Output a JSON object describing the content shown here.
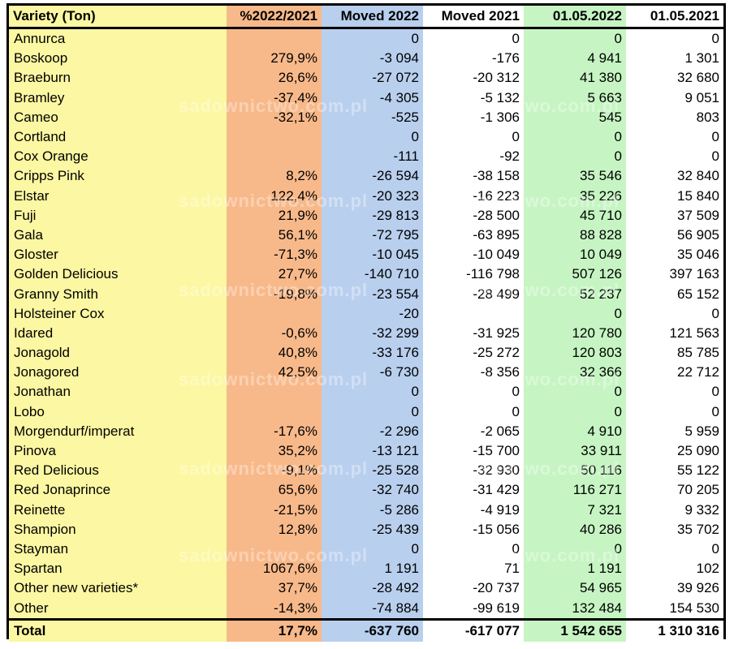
{
  "header": {
    "variety": "Variety (Ton)",
    "pct": "%2022/2021",
    "moved2022": "Moved 2022",
    "moved2021": "Moved 2021",
    "stock2022": "01.05.2022",
    "stock2021": "01.05.2021"
  },
  "rows": [
    {
      "variety": "Annurca",
      "pct": "",
      "moved2022": "0",
      "moved2021": "0",
      "stock2022": "0",
      "stock2021": "0"
    },
    {
      "variety": "Boskoop",
      "pct": "279,9%",
      "moved2022": "-3 094",
      "moved2021": "-176",
      "stock2022": "4 941",
      "stock2021": "1 301"
    },
    {
      "variety": "Braeburn",
      "pct": "26,6%",
      "moved2022": "-27 072",
      "moved2021": "-20 312",
      "stock2022": "41 380",
      "stock2021": "32 680"
    },
    {
      "variety": "Bramley",
      "pct": "-37,4%",
      "moved2022": "-4 305",
      "moved2021": "-5 132",
      "stock2022": "5 663",
      "stock2021": "9 051"
    },
    {
      "variety": "Cameo",
      "pct": "-32,1%",
      "moved2022": "-525",
      "moved2021": "-1 306",
      "stock2022": "545",
      "stock2021": "803"
    },
    {
      "variety": "Cortland",
      "pct": "",
      "moved2022": "0",
      "moved2021": "0",
      "stock2022": "0",
      "stock2021": "0"
    },
    {
      "variety": "Cox Orange",
      "pct": "",
      "moved2022": "-111",
      "moved2021": "-92",
      "stock2022": "0",
      "stock2021": "0"
    },
    {
      "variety": "Cripps Pink",
      "pct": "8,2%",
      "moved2022": "-26 594",
      "moved2021": "-38 158",
      "stock2022": "35 546",
      "stock2021": "32 840"
    },
    {
      "variety": "Elstar",
      "pct": "122,4%",
      "moved2022": "-20 323",
      "moved2021": "-16 223",
      "stock2022": "35 226",
      "stock2021": "15 840"
    },
    {
      "variety": "Fuji",
      "pct": "21,9%",
      "moved2022": "-29 813",
      "moved2021": "-28 500",
      "stock2022": "45 710",
      "stock2021": "37 509"
    },
    {
      "variety": "Gala",
      "pct": "56,1%",
      "moved2022": "-72 795",
      "moved2021": "-63 895",
      "stock2022": "88 828",
      "stock2021": "56 905"
    },
    {
      "variety": "Gloster",
      "pct": "-71,3%",
      "moved2022": "-10 045",
      "moved2021": "-10 049",
      "stock2022": "10 049",
      "stock2021": "35 046"
    },
    {
      "variety": "Golden Delicious",
      "pct": "27,7%",
      "moved2022": "-140 710",
      "moved2021": "-116 798",
      "stock2022": "507 126",
      "stock2021": "397 163"
    },
    {
      "variety": "Granny Smith",
      "pct": "-19,8%",
      "moved2022": "-23 554",
      "moved2021": "-28 499",
      "stock2022": "52 237",
      "stock2021": "65 152"
    },
    {
      "variety": "Holsteiner Cox",
      "pct": "",
      "moved2022": "-20",
      "moved2021": "",
      "stock2022": "0",
      "stock2021": "0"
    },
    {
      "variety": "Idared",
      "pct": "-0,6%",
      "moved2022": "-32 299",
      "moved2021": "-31 925",
      "stock2022": "120 780",
      "stock2021": "121 563"
    },
    {
      "variety": "Jonagold",
      "pct": "40,8%",
      "moved2022": "-33 176",
      "moved2021": "-25 272",
      "stock2022": "120 803",
      "stock2021": "85 785"
    },
    {
      "variety": "Jonagored",
      "pct": "42,5%",
      "moved2022": "-6 730",
      "moved2021": "-8 356",
      "stock2022": "32 366",
      "stock2021": "22 712"
    },
    {
      "variety": "Jonathan",
      "pct": "",
      "moved2022": "0",
      "moved2021": "0",
      "stock2022": "0",
      "stock2021": "0"
    },
    {
      "variety": "Lobo",
      "pct": "",
      "moved2022": "0",
      "moved2021": "0",
      "stock2022": "0",
      "stock2021": "0"
    },
    {
      "variety": "Morgendurf/imperat",
      "pct": "-17,6%",
      "moved2022": "-2 296",
      "moved2021": "-2 065",
      "stock2022": "4 910",
      "stock2021": "5 959"
    },
    {
      "variety": "Pinova",
      "pct": "35,2%",
      "moved2022": "-13 121",
      "moved2021": "-15 700",
      "stock2022": "33 911",
      "stock2021": "25 090"
    },
    {
      "variety": "Red Delicious",
      "pct": "-9,1%",
      "moved2022": "-25 528",
      "moved2021": "-32 930",
      "stock2022": "50 116",
      "stock2021": "55 122"
    },
    {
      "variety": "Red Jonaprince",
      "pct": "65,6%",
      "moved2022": "-32 740",
      "moved2021": "-31 429",
      "stock2022": "116 271",
      "stock2021": "70 205"
    },
    {
      "variety": "Reinette",
      "pct": "-21,5%",
      "moved2022": "-5 286",
      "moved2021": "-4 919",
      "stock2022": "7 321",
      "stock2021": "9 332"
    },
    {
      "variety": "Shampion",
      "pct": "12,8%",
      "moved2022": "-25 439",
      "moved2021": "-15 056",
      "stock2022": "40 286",
      "stock2021": "35 702"
    },
    {
      "variety": "Stayman",
      "pct": "",
      "moved2022": "0",
      "moved2021": "0",
      "stock2022": "0",
      "stock2021": "0"
    },
    {
      "variety": "Spartan",
      "pct": "1067,6%",
      "moved2022": "1 191",
      "moved2021": "71",
      "stock2022": "1 191",
      "stock2021": "102"
    },
    {
      "variety": "Other new varieties*",
      "pct": "37,7%",
      "moved2022": "-28 492",
      "moved2021": "-20 737",
      "stock2022": "54 965",
      "stock2021": "39 926"
    },
    {
      "variety": "Other",
      "pct": "-14,3%",
      "moved2022": "-74 884",
      "moved2021": "-99 619",
      "stock2022": "132 484",
      "stock2021": "154 530"
    }
  ],
  "total": {
    "variety": "Total",
    "pct": "17,7%",
    "moved2022": "-637 760",
    "moved2021": "-617 077",
    "stock2022": "1 542 655",
    "stock2021": "1 310 316"
  },
  "watermark": "sadownictwo.com.pl",
  "colors": {
    "variety_col": "#fcf7a2",
    "pct_col": "#f8b98a",
    "moved2022_col": "#b9cfee",
    "moved2021_col": "#ffffff",
    "stock2022_col": "#c6f5c3",
    "stock2021_col": "#ffffff"
  }
}
